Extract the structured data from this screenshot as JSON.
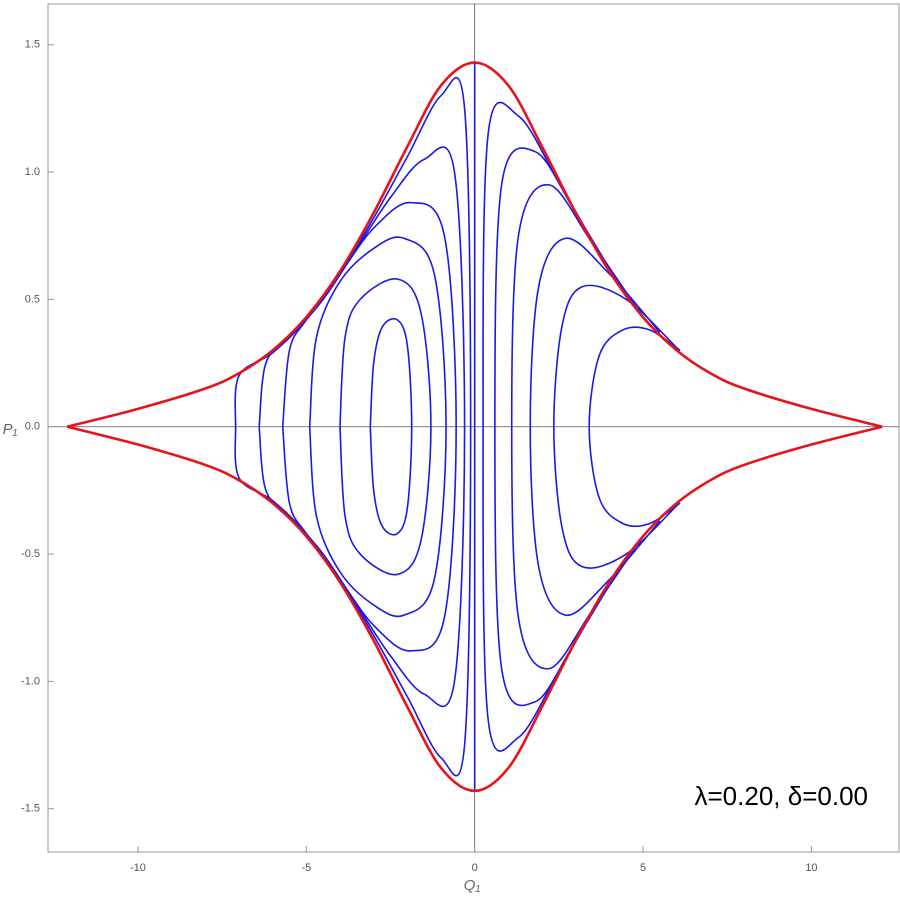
{
  "chart_data": {
    "type": "line",
    "xlabel": "Q₁",
    "ylabel": "P₁",
    "annotation": "λ=0.20, δ=0.00",
    "xlim": [
      -12.67,
      12.6
    ],
    "ylim": [
      -1.67,
      1.66
    ],
    "xticks": [
      -10,
      -5,
      0,
      5,
      10
    ],
    "yticks": [
      {
        "value": -1.5,
        "label": "-1.5"
      },
      {
        "value": -1,
        "label": "-1.0"
      },
      {
        "value": -0.5,
        "label": "-0.5"
      },
      {
        "value": 0,
        "label": "0.0"
      },
      {
        "value": 0.5,
        "label": "0.5"
      },
      {
        "value": 1,
        "label": "1.0"
      },
      {
        "value": 1.5,
        "label": "1.5"
      }
    ],
    "series": [
      {
        "color": "#1a1ae6",
        "x": [
          -3.1,
          -3.0,
          -2.75,
          -2.3,
          -2.0,
          -1.87,
          -2.0,
          -2.3,
          -2.75,
          -3.0,
          -3.1
        ],
        "values": [
          0,
          0.25,
          0.39,
          0.42,
          0.32,
          0,
          -0.32,
          -0.42,
          -0.39,
          -0.25,
          0
        ]
      },
      {
        "color": "#1a1ae6",
        "x": [
          -4.0,
          -3.85,
          -3.4,
          -2.3,
          -1.6,
          -1.3,
          -1.6,
          -2.3,
          -3.4,
          -3.85,
          -4.0
        ],
        "values": [
          0,
          0.35,
          0.5,
          0.58,
          0.45,
          0,
          -0.45,
          -0.58,
          -0.5,
          -0.35,
          0
        ]
      },
      {
        "color": "#1a1ae6",
        "x": [
          -4.9,
          -4.7,
          -4.0,
          -3.0,
          -2.1,
          -1.2,
          -0.85,
          -1.2,
          -2.1,
          -3.0,
          -4.0,
          -4.7,
          -4.9
        ],
        "values": [
          0,
          0.35,
          0.57,
          0.7,
          0.74,
          0.6,
          0,
          -0.6,
          -0.74,
          -0.7,
          -0.57,
          -0.35,
          0
        ]
      },
      {
        "color": "#1a1ae6",
        "x": [
          -5.7,
          -5.5,
          -5.0,
          -4.0,
          -3.0,
          -1.9,
          -0.9,
          -0.55,
          -0.9,
          -1.9,
          -3.0,
          -4.0,
          -5.0,
          -5.5,
          -5.7
        ],
        "values": [
          0,
          0.3,
          0.42,
          0.6,
          0.78,
          0.88,
          0.75,
          0,
          -0.75,
          -0.88,
          -0.78,
          -0.6,
          -0.42,
          -0.3,
          0
        ]
      },
      {
        "color": "#1a1ae6",
        "x": [
          -6.4,
          -6.2,
          -5.5,
          -4.5,
          -3.5,
          -2.5,
          -1.5,
          -0.6,
          -0.3,
          -0.6,
          -1.5,
          -2.5,
          -3.5,
          -4.5,
          -5.5,
          -6.2,
          -6.4
        ],
        "values": [
          0,
          0.25,
          0.35,
          0.5,
          0.7,
          0.9,
          1.05,
          1.0,
          0,
          -1.0,
          -1.05,
          -0.9,
          -0.7,
          -0.5,
          -0.35,
          -0.25,
          0
        ]
      },
      {
        "color": "#1a1ae6",
        "x": [
          -7.1,
          -7.0,
          -6.0,
          -5.0,
          -4.0,
          -3.0,
          -2.0,
          -1.0,
          -0.3,
          -0.12,
          -0.3,
          -1.0,
          -2.0,
          -3.0,
          -4.0,
          -5.0,
          -6.0,
          -7.0,
          -7.1
        ],
        "values": [
          0,
          0.2,
          0.29,
          0.42,
          0.6,
          0.82,
          1.06,
          1.3,
          1.25,
          0,
          -1.25,
          -1.3,
          -1.06,
          -0.82,
          -0.6,
          -0.42,
          -0.29,
          -0.2,
          0
        ]
      },
      {
        "color": "#1a1ae6",
        "x": [
          6.1,
          5.2,
          4.4,
          3.7,
          3.4,
          3.7,
          4.4,
          5.2,
          6.1
        ],
        "values": [
          0.3,
          0.38,
          0.38,
          0.28,
          0,
          -0.28,
          -0.38,
          -0.38,
          -0.3
        ]
      },
      {
        "color": "#1a1ae6",
        "x": [
          6.0,
          4.5,
          3.2,
          2.6,
          2.35,
          2.6,
          3.2,
          4.5,
          6.0
        ],
        "values": [
          0.31,
          0.5,
          0.55,
          0.4,
          0,
          -0.4,
          -0.55,
          -0.5,
          -0.31
        ]
      },
      {
        "color": "#1a1ae6",
        "x": [
          5.5,
          4.0,
          2.7,
          1.9,
          1.65,
          1.9,
          2.7,
          4.0,
          5.5
        ],
        "values": [
          0.37,
          0.6,
          0.74,
          0.55,
          0,
          -0.55,
          -0.74,
          -0.6,
          -0.37
        ]
      },
      {
        "color": "#1a1ae6",
        "x": [
          5.0,
          3.5,
          2.2,
          1.3,
          1.1,
          1.3,
          2.2,
          3.5,
          5.0
        ],
        "values": [
          0.43,
          0.72,
          0.95,
          0.75,
          0,
          -0.75,
          -0.95,
          -0.72,
          -0.43
        ]
      },
      {
        "color": "#1a1ae6",
        "x": [
          4.5,
          3.0,
          1.8,
          0.8,
          0.6,
          0.8,
          1.8,
          3.0,
          4.5
        ],
        "values": [
          0.51,
          0.84,
          1.08,
          0.95,
          0,
          -0.95,
          -1.08,
          -0.84,
          -0.51
        ]
      },
      {
        "color": "#1a1ae6",
        "x": [
          4.0,
          2.5,
          1.3,
          0.4,
          0.25,
          0.4,
          1.3,
          2.5,
          4.0
        ],
        "values": [
          0.61,
          0.96,
          1.22,
          1.15,
          0,
          -1.15,
          -1.22,
          -0.96,
          -0.61
        ]
      },
      {
        "color": "#1a1ae6",
        "x": [
          0,
          0
        ],
        "values": [
          1.43,
          -1.43
        ]
      },
      {
        "color": "#e8131a",
        "x": [
          -12.1,
          -10,
          -8,
          -7,
          -6,
          -5,
          -4,
          -3,
          -2,
          -1,
          0,
          1,
          2,
          3,
          4,
          5,
          6,
          7,
          8,
          10,
          12.1
        ],
        "values": [
          0,
          0.07,
          0.15,
          0.21,
          0.3,
          0.43,
          0.61,
          0.84,
          1.1,
          1.34,
          1.43,
          1.34,
          1.1,
          0.84,
          0.61,
          0.43,
          0.3,
          0.21,
          0.15,
          0.07,
          0
        ]
      },
      {
        "color": "#e8131a",
        "x": [
          -12.1,
          -10,
          -8,
          -7,
          -6,
          -5,
          -4,
          -3,
          -2,
          -1,
          0,
          1,
          2,
          3,
          4,
          5,
          6,
          7,
          8,
          10,
          12.1
        ],
        "values": [
          0,
          -0.07,
          -0.15,
          -0.21,
          -0.3,
          -0.43,
          -0.61,
          -0.84,
          -1.1,
          -1.34,
          -1.43,
          -1.34,
          -1.1,
          -0.84,
          -0.61,
          -0.43,
          -0.3,
          -0.21,
          -0.15,
          -0.07,
          0
        ]
      }
    ]
  }
}
